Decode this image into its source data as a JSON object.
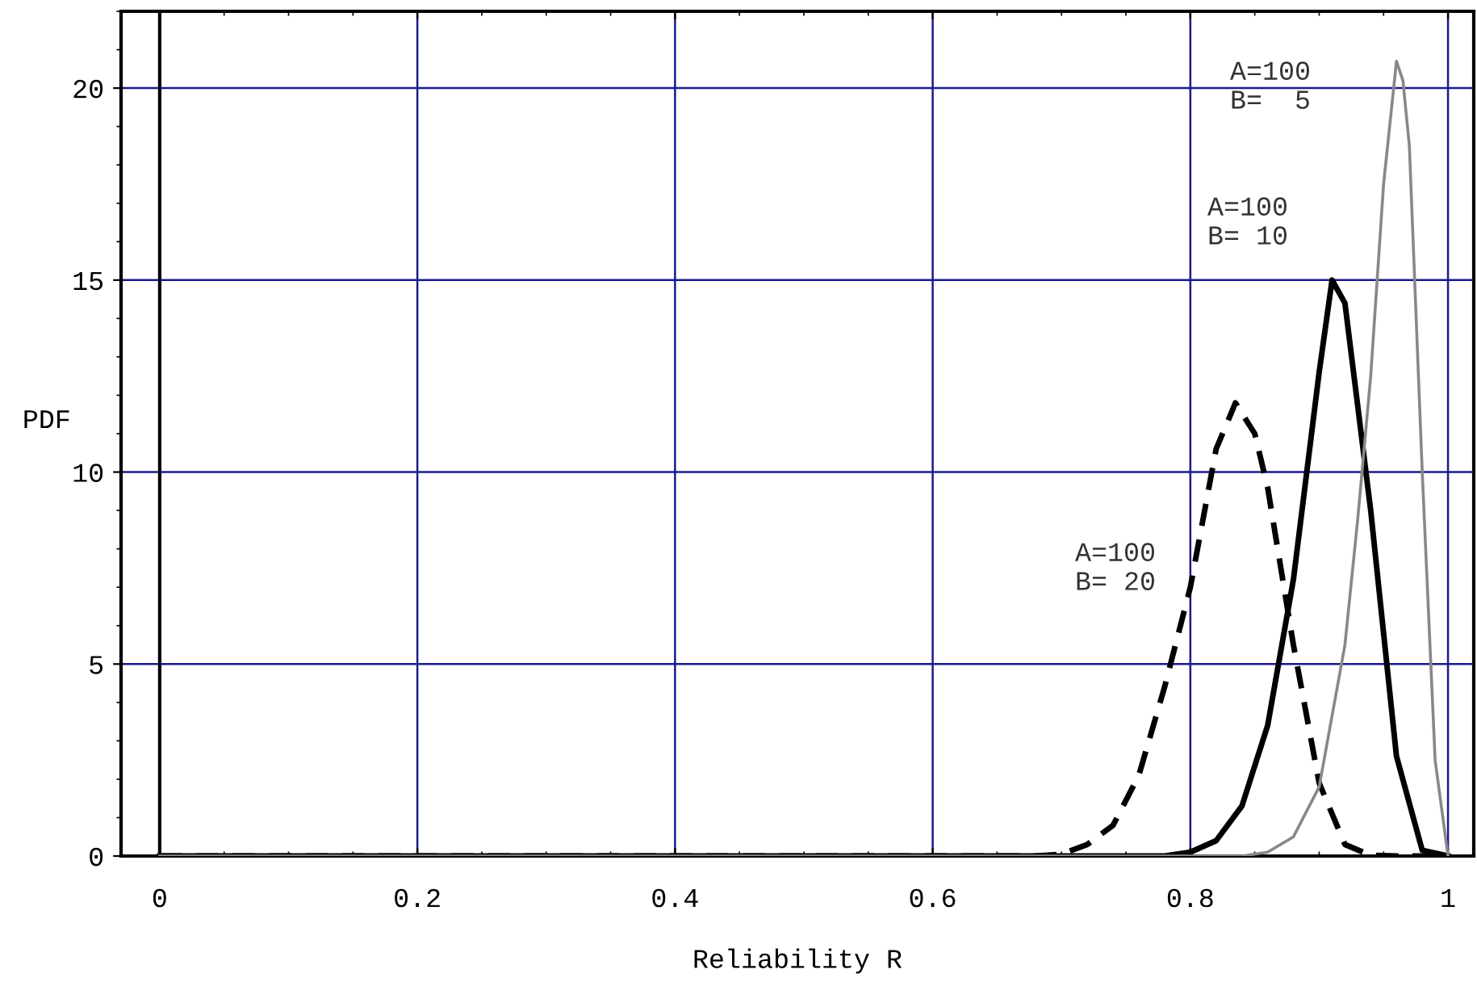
{
  "chart_data": {
    "type": "line",
    "xlabel": "Reliability R",
    "ylabel": "PDF",
    "xlim": [
      -0.03,
      1.02
    ],
    "ylim": [
      0,
      22
    ],
    "xticks": [
      0,
      0.2,
      0.4,
      0.6,
      0.8,
      1
    ],
    "yticks": [
      0,
      5,
      10,
      15,
      20
    ],
    "grid": true,
    "marker": "none",
    "ref_lines": [
      {
        "axis": "x",
        "value": 0,
        "color": "#000000",
        "line_style": "solid"
      }
    ],
    "series": [
      {
        "color": "#000000",
        "line_style": "dashed",
        "x": [
          0,
          0.68,
          0.7,
          0.72,
          0.74,
          0.76,
          0.78,
          0.8,
          0.82,
          0.835,
          0.85,
          0.86,
          0.88,
          0.9,
          0.92,
          0.94,
          0.96,
          1.0
        ],
        "values": [
          0,
          0,
          0.05,
          0.3,
          0.8,
          2.1,
          4.4,
          7.0,
          10.6,
          11.8,
          11.0,
          9.6,
          5.5,
          1.9,
          0.3,
          0.02,
          0,
          0
        ]
      },
      {
        "color": "#000000",
        "line_style": "solid",
        "x": [
          0,
          0.78,
          0.8,
          0.82,
          0.84,
          0.86,
          0.88,
          0.9,
          0.91,
          0.92,
          0.94,
          0.96,
          0.98,
          1.0
        ],
        "values": [
          0,
          0,
          0.1,
          0.4,
          1.3,
          3.4,
          7.2,
          12.6,
          15.0,
          14.4,
          9.0,
          2.6,
          0.15,
          0
        ]
      },
      {
        "color": "#888888",
        "line_style": "solid",
        "x": [
          0,
          0.84,
          0.86,
          0.88,
          0.9,
          0.92,
          0.93,
          0.94,
          0.95,
          0.96,
          0.965,
          0.97,
          0.98,
          0.99,
          1.0
        ],
        "values": [
          0,
          0,
          0.1,
          0.5,
          1.8,
          5.5,
          8.8,
          12.5,
          17.5,
          20.7,
          20.2,
          18.5,
          10.0,
          2.5,
          0
        ]
      }
    ],
    "annotations": [
      "A=100\nB=  5",
      "A=100\nB= 10",
      "A=100\nB= 20"
    ]
  }
}
